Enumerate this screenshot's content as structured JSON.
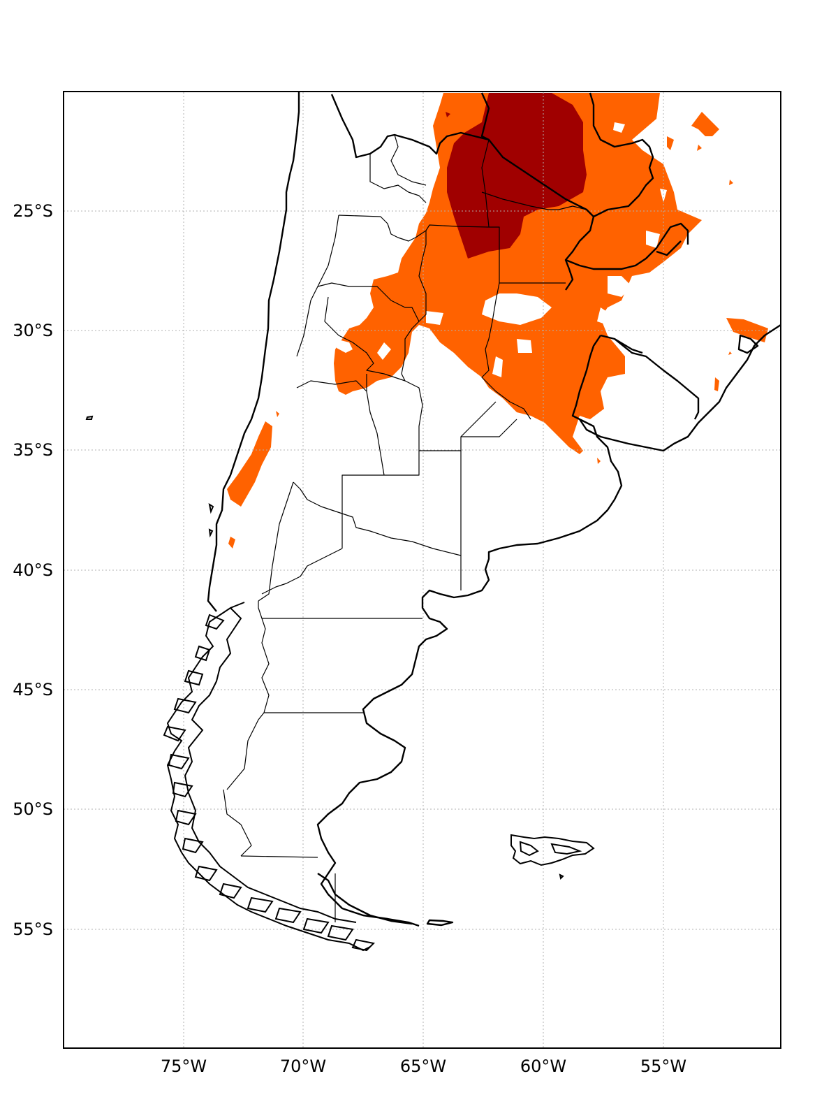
{
  "map": {
    "lon_ticks": [
      "75°W",
      "70°W",
      "65°W",
      "60°W",
      "55°W"
    ],
    "lat_ticks": [
      "25°S",
      "30°S",
      "35°S",
      "40°S",
      "45°S",
      "50°S",
      "55°S"
    ],
    "colors": {
      "level_1": "#ff6200",
      "level_2": "#a00000",
      "line": "#000000",
      "grid": "#b0b0b0"
    },
    "gridlines": true,
    "legend": false
  }
}
